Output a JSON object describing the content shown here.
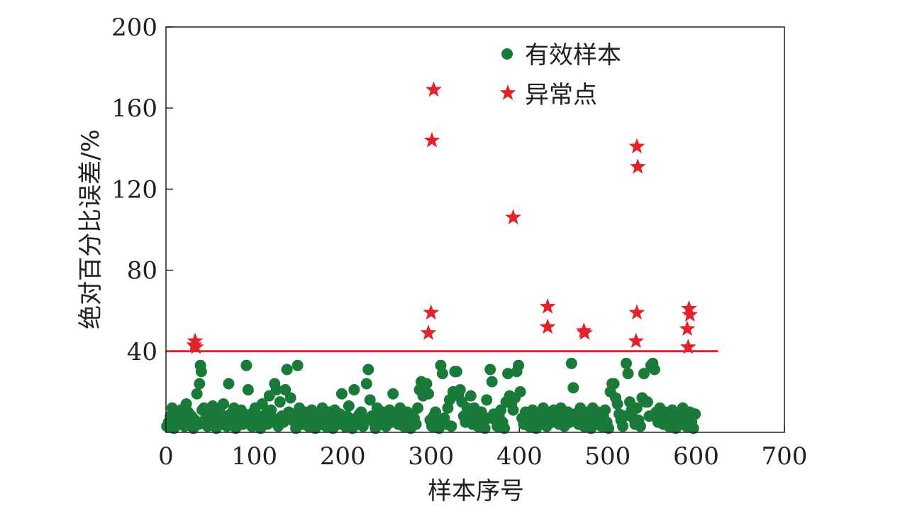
{
  "chart_data": {
    "type": "scatter",
    "title": "",
    "xlabel": "样本序号",
    "ylabel": "绝对百分比误差/%",
    "xlim": [
      0,
      700
    ],
    "ylim": [
      0,
      200
    ],
    "x_ticks": [
      0,
      100,
      200,
      300,
      400,
      500,
      600,
      700
    ],
    "y_ticks": [
      40,
      80,
      120,
      160,
      200
    ],
    "x_tick_labels": [
      "0",
      "100",
      "200",
      "300",
      "400",
      "500",
      "600",
      "700"
    ],
    "y_tick_labels": [
      "40",
      "80",
      "120",
      "160",
      "200"
    ],
    "grid": false,
    "legend_position": "top-right",
    "threshold": {
      "y": 40,
      "x_range": [
        0,
        625
      ],
      "color": "#e3232c"
    },
    "series": [
      {
        "name": "有效样本",
        "marker": "circle",
        "color": "#1a7a3a",
        "points": [
          [
            1,
            3
          ],
          [
            3,
            5
          ],
          [
            5,
            8
          ],
          [
            7,
            12
          ],
          [
            9,
            2
          ],
          [
            11,
            6
          ],
          [
            13,
            9
          ],
          [
            15,
            4
          ],
          [
            17,
            11
          ],
          [
            19,
            7
          ],
          [
            21,
            3
          ],
          [
            23,
            14
          ],
          [
            25,
            10
          ],
          [
            27,
            5
          ],
          [
            29,
            8
          ],
          [
            31,
            2
          ],
          [
            33,
            6
          ],
          [
            35,
            19
          ],
          [
            37,
            4
          ],
          [
            38,
            24
          ],
          [
            39,
            33
          ],
          [
            40,
            30
          ],
          [
            41,
            11
          ],
          [
            43,
            12
          ],
          [
            45,
            7
          ],
          [
            47,
            3
          ],
          [
            49,
            9
          ],
          [
            51,
            5
          ],
          [
            53,
            13
          ],
          [
            55,
            8
          ],
          [
            57,
            2
          ],
          [
            59,
            6
          ],
          [
            61,
            10
          ],
          [
            63,
            4
          ],
          [
            65,
            14
          ],
          [
            67,
            7
          ],
          [
            69,
            3
          ],
          [
            71,
            24
          ],
          [
            73,
            9
          ],
          [
            75,
            5
          ],
          [
            77,
            12
          ],
          [
            79,
            2
          ],
          [
            81,
            8
          ],
          [
            83,
            6
          ],
          [
            85,
            11
          ],
          [
            87,
            4
          ],
          [
            89,
            9
          ],
          [
            91,
            33
          ],
          [
            93,
            21
          ],
          [
            95,
            7
          ],
          [
            97,
            3
          ],
          [
            99,
            10
          ],
          [
            101,
            12
          ],
          [
            103,
            5
          ],
          [
            105,
            8
          ],
          [
            107,
            2
          ],
          [
            109,
            14
          ],
          [
            111,
            6
          ],
          [
            113,
            9
          ],
          [
            115,
            4
          ],
          [
            117,
            18
          ],
          [
            119,
            11
          ],
          [
            121,
            7
          ],
          [
            123,
            24
          ],
          [
            125,
            21
          ],
          [
            127,
            3
          ],
          [
            129,
            15
          ],
          [
            131,
            8
          ],
          [
            133,
            5
          ],
          [
            135,
            21
          ],
          [
            137,
            31
          ],
          [
            139,
            10
          ],
          [
            141,
            17
          ],
          [
            143,
            6
          ],
          [
            145,
            9
          ],
          [
            147,
            2
          ],
          [
            149,
            33
          ],
          [
            151,
            12
          ],
          [
            153,
            7
          ],
          [
            155,
            4
          ],
          [
            157,
            10
          ],
          [
            159,
            6
          ],
          [
            161,
            3
          ],
          [
            163,
            8
          ],
          [
            165,
            11
          ],
          [
            167,
            5
          ],
          [
            169,
            2
          ],
          [
            171,
            9
          ],
          [
            173,
            7
          ],
          [
            175,
            4
          ],
          [
            177,
            12
          ],
          [
            179,
            6
          ],
          [
            181,
            3
          ],
          [
            183,
            8
          ],
          [
            185,
            10
          ],
          [
            187,
            5
          ],
          [
            189,
            2
          ],
          [
            191,
            11
          ],
          [
            193,
            7
          ],
          [
            195,
            4
          ],
          [
            197,
            9
          ],
          [
            199,
            19
          ],
          [
            201,
            6
          ],
          [
            203,
            3
          ],
          [
            205,
            8
          ],
          [
            207,
            13
          ],
          [
            209,
            5
          ],
          [
            211,
            2
          ],
          [
            213,
            21
          ],
          [
            215,
            7
          ],
          [
            217,
            4
          ],
          [
            219,
            9
          ],
          [
            221,
            10
          ],
          [
            223,
            3
          ],
          [
            225,
            6
          ],
          [
            227,
            24
          ],
          [
            229,
            31
          ],
          [
            231,
            16
          ],
          [
            233,
            8
          ],
          [
            235,
            5
          ],
          [
            237,
            2
          ],
          [
            239,
            12
          ],
          [
            241,
            7
          ],
          [
            243,
            4
          ],
          [
            245,
            10
          ],
          [
            247,
            6
          ],
          [
            249,
            3
          ],
          [
            251,
            8
          ],
          [
            253,
            11
          ],
          [
            255,
            5
          ],
          [
            257,
            19
          ],
          [
            259,
            9
          ],
          [
            261,
            7
          ],
          [
            263,
            4
          ],
          [
            265,
            12
          ],
          [
            267,
            6
          ],
          [
            269,
            3
          ],
          [
            271,
            8
          ],
          [
            273,
            10
          ],
          [
            275,
            5
          ],
          [
            277,
            2
          ],
          [
            279,
            9
          ],
          [
            281,
            7
          ],
          [
            283,
            4
          ],
          [
            285,
            12
          ],
          [
            287,
            21
          ],
          [
            289,
            25
          ],
          [
            291,
            18
          ],
          [
            293,
            24
          ],
          [
            295,
            24
          ],
          [
            297,
            19
          ],
          [
            299,
            6
          ],
          [
            301,
            3
          ],
          [
            303,
            8
          ],
          [
            305,
            10
          ],
          [
            307,
            5
          ],
          [
            309,
            2
          ],
          [
            311,
            33
          ],
          [
            313,
            29
          ],
          [
            315,
            7
          ],
          [
            317,
            4
          ],
          [
            319,
            12
          ],
          [
            321,
            16
          ],
          [
            323,
            3
          ],
          [
            325,
            20
          ],
          [
            327,
            30
          ],
          [
            329,
            30
          ],
          [
            331,
            18
          ],
          [
            333,
            21
          ],
          [
            335,
            15
          ],
          [
            337,
            8
          ],
          [
            339,
            5
          ],
          [
            341,
            12
          ],
          [
            343,
            9
          ],
          [
            345,
            18
          ],
          [
            347,
            4
          ],
          [
            349,
            12
          ],
          [
            351,
            6
          ],
          [
            353,
            3
          ],
          [
            355,
            8
          ],
          [
            357,
            10
          ],
          [
            359,
            5
          ],
          [
            361,
            2
          ],
          [
            363,
            16
          ],
          [
            365,
            7
          ],
          [
            367,
            31
          ],
          [
            369,
            25
          ],
          [
            371,
            9
          ],
          [
            373,
            6
          ],
          [
            375,
            3
          ],
          [
            377,
            8
          ],
          [
            379,
            11
          ],
          [
            381,
            5
          ],
          [
            383,
            2
          ],
          [
            385,
            15
          ],
          [
            387,
            29
          ],
          [
            389,
            18
          ],
          [
            391,
            14
          ],
          [
            393,
            11
          ],
          [
            395,
            17
          ],
          [
            397,
            30
          ],
          [
            399,
            33
          ],
          [
            401,
            20
          ],
          [
            403,
            7
          ],
          [
            405,
            4
          ],
          [
            407,
            10
          ],
          [
            409,
            6
          ],
          [
            411,
            3
          ],
          [
            413,
            8
          ],
          [
            415,
            11
          ],
          [
            417,
            5
          ],
          [
            419,
            2
          ],
          [
            421,
            9
          ],
          [
            423,
            7
          ],
          [
            425,
            4
          ],
          [
            427,
            12
          ],
          [
            429,
            6
          ],
          [
            431,
            3
          ],
          [
            433,
            8
          ],
          [
            435,
            10
          ],
          [
            437,
            5
          ],
          [
            439,
            11
          ],
          [
            441,
            9
          ],
          [
            443,
            7
          ],
          [
            445,
            4
          ],
          [
            447,
            12
          ],
          [
            449,
            6
          ],
          [
            451,
            3
          ],
          [
            453,
            8
          ],
          [
            455,
            10
          ],
          [
            457,
            5
          ],
          [
            459,
            34
          ],
          [
            461,
            22
          ],
          [
            463,
            9
          ],
          [
            465,
            7
          ],
          [
            467,
            4
          ],
          [
            469,
            12
          ],
          [
            471,
            6
          ],
          [
            473,
            3
          ],
          [
            475,
            8
          ],
          [
            477,
            10
          ],
          [
            479,
            5
          ],
          [
            481,
            2
          ],
          [
            483,
            12
          ],
          [
            485,
            7
          ],
          [
            487,
            4
          ],
          [
            489,
            10
          ],
          [
            491,
            6
          ],
          [
            493,
            3
          ],
          [
            495,
            8
          ],
          [
            497,
            11
          ],
          [
            499,
            5
          ],
          [
            501,
            2
          ],
          [
            503,
            20
          ],
          [
            505,
            24
          ],
          [
            507,
            24
          ],
          [
            509,
            17
          ],
          [
            511,
            14
          ],
          [
            513,
            9
          ],
          [
            515,
            6
          ],
          [
            517,
            3
          ],
          [
            519,
            8
          ],
          [
            521,
            34
          ],
          [
            523,
            29
          ],
          [
            525,
            15
          ],
          [
            527,
            11
          ],
          [
            529,
            7
          ],
          [
            531,
            4
          ],
          [
            533,
            12
          ],
          [
            535,
            6
          ],
          [
            537,
            3
          ],
          [
            539,
            17
          ],
          [
            541,
            29
          ],
          [
            543,
            15
          ],
          [
            545,
            15
          ],
          [
            547,
            8
          ],
          [
            549,
            33
          ],
          [
            551,
            34
          ],
          [
            553,
            31
          ],
          [
            555,
            10
          ],
          [
            557,
            5
          ],
          [
            559,
            12
          ],
          [
            561,
            7
          ],
          [
            563,
            4
          ],
          [
            565,
            10
          ],
          [
            567,
            6
          ],
          [
            569,
            3
          ],
          [
            571,
            8
          ],
          [
            573,
            11
          ],
          [
            575,
            5
          ],
          [
            577,
            2
          ],
          [
            579,
            9
          ],
          [
            581,
            7
          ],
          [
            583,
            4
          ],
          [
            585,
            12
          ],
          [
            587,
            6
          ],
          [
            589,
            3
          ],
          [
            591,
            8
          ],
          [
            593,
            10
          ],
          [
            595,
            5
          ],
          [
            597,
            2
          ],
          [
            599,
            9
          ]
        ]
      },
      {
        "name": "异常点",
        "marker": "star",
        "color": "#e3232c",
        "points": [
          [
            32,
            43
          ],
          [
            33,
            45
          ],
          [
            34,
            42
          ],
          [
            297,
            49
          ],
          [
            300,
            59
          ],
          [
            301,
            144
          ],
          [
            303,
            169
          ],
          [
            393,
            106
          ],
          [
            432,
            62
          ],
          [
            432,
            52
          ],
          [
            473,
            50
          ],
          [
            474,
            49
          ],
          [
            533,
            141
          ],
          [
            534,
            131
          ],
          [
            533,
            59
          ],
          [
            532,
            45
          ],
          [
            590,
            51
          ],
          [
            591,
            42
          ],
          [
            592,
            61
          ],
          [
            593,
            58
          ]
        ]
      }
    ]
  }
}
